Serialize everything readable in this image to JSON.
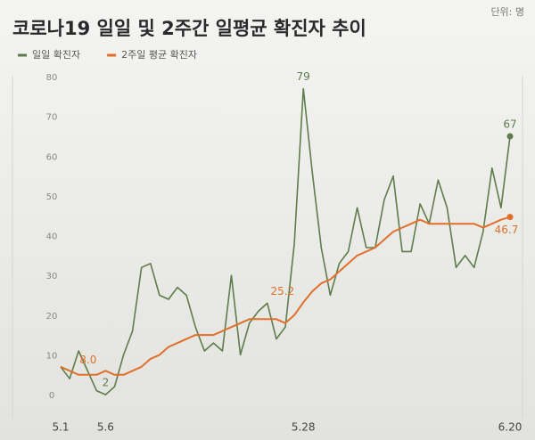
{
  "chart_data": {
    "type": "line",
    "title": "코로나19 일일 및 2주간 일평균 확진자 추이",
    "unit": "단위: 명",
    "categories": [
      "5.1",
      null,
      null,
      null,
      null,
      "5.6",
      null,
      null,
      null,
      null,
      null,
      null,
      null,
      null,
      null,
      null,
      null,
      null,
      null,
      null,
      null,
      null,
      null,
      null,
      null,
      null,
      null,
      "5.28",
      null,
      null,
      null,
      null,
      null,
      null,
      null,
      null,
      null,
      null,
      null,
      null,
      null,
      null,
      null,
      null,
      null,
      null,
      null,
      null,
      null,
      null,
      "6.20"
    ],
    "ylim": [
      0,
      80
    ],
    "yticks": [
      0,
      10,
      20,
      30,
      40,
      50,
      60,
      70,
      80
    ],
    "grid": false,
    "series": [
      {
        "name": "일일 확진자",
        "color": "#5e7d4a",
        "values": [
          9,
          6,
          13,
          8,
          3,
          2,
          4,
          12,
          18,
          34,
          35,
          27,
          26,
          29,
          27,
          19,
          13,
          15,
          13,
          32,
          12,
          20,
          23,
          25,
          16,
          19,
          40,
          79,
          58,
          39,
          27,
          35,
          38,
          49,
          39,
          39,
          51,
          57,
          38,
          38,
          50,
          45,
          56,
          49,
          34,
          37,
          34,
          43,
          59,
          49,
          67
        ],
        "value_labels": [
          null,
          null,
          null,
          null,
          null,
          "2",
          null,
          null,
          null,
          null,
          null,
          null,
          null,
          null,
          null,
          null,
          null,
          null,
          null,
          null,
          null,
          null,
          null,
          null,
          null,
          null,
          null,
          "79",
          null,
          null,
          null,
          null,
          null,
          null,
          null,
          null,
          null,
          null,
          null,
          null,
          null,
          null,
          null,
          null,
          null,
          null,
          null,
          null,
          null,
          null,
          "67"
        ]
      },
      {
        "name": "2주일 평균 확진자",
        "color": "#e0702a",
        "values": [
          9,
          8,
          7,
          7,
          7,
          8,
          7,
          7,
          8,
          9,
          11,
          12,
          14,
          15,
          16,
          17,
          17,
          17,
          18,
          19,
          20,
          21,
          21,
          21,
          21,
          20,
          22,
          25.2,
          28,
          30,
          31,
          33,
          35,
          37,
          38,
          39,
          41,
          43,
          44,
          45,
          46,
          45,
          45,
          45,
          45,
          45,
          45,
          44,
          45,
          46,
          46.7
        ],
        "value_labels": [
          null,
          null,
          null,
          null,
          null,
          "8.0",
          null,
          null,
          null,
          null,
          null,
          null,
          null,
          null,
          null,
          null,
          null,
          null,
          null,
          null,
          null,
          null,
          null,
          null,
          null,
          null,
          null,
          "25.2",
          null,
          null,
          null,
          null,
          null,
          null,
          null,
          null,
          null,
          null,
          null,
          null,
          null,
          null,
          null,
          null,
          null,
          null,
          null,
          null,
          null,
          null,
          "46.7"
        ]
      }
    ]
  }
}
